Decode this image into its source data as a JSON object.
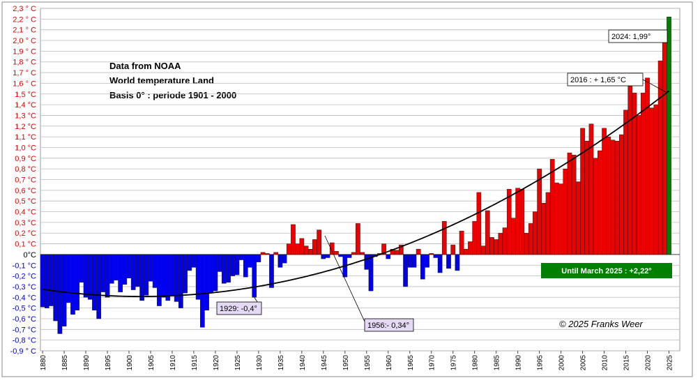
{
  "chart_data": {
    "type": "bar",
    "x": [
      1880,
      1881,
      1882,
      1883,
      1884,
      1885,
      1886,
      1887,
      1888,
      1889,
      1890,
      1891,
      1892,
      1893,
      1894,
      1895,
      1896,
      1897,
      1898,
      1899,
      1900,
      1901,
      1902,
      1903,
      1904,
      1905,
      1906,
      1907,
      1908,
      1909,
      1910,
      1911,
      1912,
      1913,
      1914,
      1915,
      1916,
      1917,
      1918,
      1919,
      1920,
      1921,
      1922,
      1923,
      1924,
      1925,
      1926,
      1927,
      1928,
      1929,
      1930,
      1931,
      1932,
      1933,
      1934,
      1935,
      1936,
      1937,
      1938,
      1939,
      1940,
      1941,
      1942,
      1943,
      1944,
      1945,
      1946,
      1947,
      1948,
      1949,
      1950,
      1951,
      1952,
      1953,
      1954,
      1955,
      1956,
      1957,
      1958,
      1959,
      1960,
      1961,
      1962,
      1963,
      1964,
      1965,
      1966,
      1967,
      1968,
      1969,
      1970,
      1971,
      1972,
      1973,
      1974,
      1975,
      1976,
      1977,
      1978,
      1979,
      1980,
      1981,
      1982,
      1983,
      1984,
      1985,
      1986,
      1987,
      1988,
      1989,
      1990,
      1991,
      1992,
      1993,
      1994,
      1995,
      1996,
      1997,
      1998,
      1999,
      2000,
      2001,
      2002,
      2003,
      2004,
      2005,
      2006,
      2007,
      2008,
      2009,
      2010,
      2011,
      2012,
      2013,
      2014,
      2015,
      2016,
      2017,
      2018,
      2019,
      2020,
      2021,
      2022,
      2023,
      2024,
      2025
    ],
    "values": [
      -0.49,
      -0.5,
      -0.48,
      -0.62,
      -0.74,
      -0.67,
      -0.45,
      -0.56,
      -0.52,
      -0.26,
      -0.4,
      -0.42,
      -0.52,
      -0.6,
      -0.35,
      -0.4,
      -0.27,
      -0.24,
      -0.35,
      -0.28,
      -0.22,
      -0.33,
      -0.3,
      -0.43,
      -0.38,
      -0.25,
      -0.31,
      -0.48,
      -0.4,
      -0.43,
      -0.38,
      -0.44,
      -0.5,
      -0.36,
      -0.15,
      -0.12,
      -0.42,
      -0.68,
      -0.52,
      -0.36,
      -0.34,
      -0.16,
      -0.27,
      -0.26,
      -0.2,
      -0.19,
      -0.05,
      -0.21,
      -0.12,
      -0.4,
      -0.07,
      0.02,
      0.01,
      -0.31,
      0.02,
      -0.12,
      -0.08,
      0.1,
      0.28,
      0.1,
      0.15,
      0.08,
      0.05,
      0.14,
      0.23,
      -0.04,
      -0.03,
      0.11,
      0.03,
      -0.02,
      -0.21,
      -0.03,
      0.02,
      0.29,
      0.02,
      -0.14,
      -0.34,
      -0.02,
      0.01,
      0.1,
      -0.04,
      0.05,
      0.04,
      0.09,
      -0.3,
      -0.12,
      -0.12,
      0.05,
      -0.23,
      -0.12,
      0.01,
      -0.03,
      -0.17,
      0.31,
      -0.13,
      0.09,
      -0.15,
      0.22,
      0.05,
      0.12,
      0.31,
      0.58,
      0.08,
      0.41,
      0.16,
      0.14,
      0.2,
      0.25,
      0.61,
      0.34,
      0.62,
      0.61,
      0.2,
      0.29,
      0.4,
      0.8,
      0.48,
      0.58,
      0.89,
      0.67,
      0.66,
      0.8,
      0.95,
      0.93,
      0.68,
      1.18,
      1.06,
      1.22,
      0.9,
      0.97,
      1.18,
      1.1,
      1.07,
      1.06,
      1.12,
      1.35,
      1.65,
      1.51,
      1.3,
      1.51,
      1.65,
      1.37,
      1.4,
      1.81,
      1.99,
      2.22
    ],
    "positive_color": "#ee0000",
    "negative_color": "#0000ee",
    "last_color": "#008000",
    "trendline": "polynomial",
    "xlim": [
      1879.5,
      2027.5
    ],
    "xticks": [
      1880,
      1885,
      1890,
      1895,
      1900,
      1905,
      1910,
      1915,
      1920,
      1925,
      1930,
      1935,
      1940,
      1945,
      1950,
      1955,
      1960,
      1965,
      1970,
      1975,
      1980,
      1985,
      1990,
      1995,
      2000,
      2005,
      2010,
      2015,
      2020,
      2025
    ],
    "ylim": [
      -0.9,
      2.3
    ],
    "yticks": [
      {
        "value": 2.3,
        "label": "2,3 ° C"
      },
      {
        "value": 2.2,
        "label": "2,2 ° C"
      },
      {
        "value": 2.1,
        "label": "2,1 ° C"
      },
      {
        "value": 2.0,
        "label": "2,0 ° C"
      },
      {
        "value": 1.9,
        "label": "1,9 ° C"
      },
      {
        "value": 1.8,
        "label": "1,8 ° C"
      },
      {
        "value": 1.7,
        "label": "1,7 ° C"
      },
      {
        "value": 1.6,
        "label": "1,6 ° C"
      },
      {
        "value": 1.5,
        "label": "1,5 °C"
      },
      {
        "value": 1.4,
        "label": "1,4 °C"
      },
      {
        "value": 1.3,
        "label": "1,3 °C"
      },
      {
        "value": 1.2,
        "label": "1,2 °C"
      },
      {
        "value": 1.1,
        "label": "1,1 °C"
      },
      {
        "value": 1.0,
        "label": "1,0 °C"
      },
      {
        "value": 0.9,
        "label": "0,9 °C"
      },
      {
        "value": 0.8,
        "label": "0,8 °C"
      },
      {
        "value": 0.7,
        "label": "0,7 °C"
      },
      {
        "value": 0.6,
        "label": "0,6 °C"
      },
      {
        "value": 0.5,
        "label": "0,5 °C"
      },
      {
        "value": 0.4,
        "label": "0,4 °C"
      },
      {
        "value": 0.3,
        "label": "0,3 °C"
      },
      {
        "value": 0.2,
        "label": "0,2 °C"
      },
      {
        "value": 0.1,
        "label": "0,1 °C"
      },
      {
        "value": 0,
        "label": "0°C"
      },
      {
        "value": -0.1,
        "label": "-0,1 °C"
      },
      {
        "value": -0.2,
        "label": "-0,2 °C"
      },
      {
        "value": -0.3,
        "label": "-0,3 °C"
      },
      {
        "value": -0.4,
        "label": "-0,4 °C"
      },
      {
        "value": -0.5,
        "label": "-0,5 °C"
      },
      {
        "value": -0.6,
        "label": "-0,6 °C"
      },
      {
        "value": -0.7,
        "label": "-0,7 °C"
      },
      {
        "value": -0.8,
        "label": "-0,8 °C"
      },
      {
        "value": -0.9,
        "label": "-0,9 ° C"
      }
    ],
    "grid": true,
    "notes": [
      "Data from NOAA",
      "World temperature Land",
      "Basis 0° : periode 1901 - 2000"
    ],
    "annotations": [
      {
        "text": "2024: 1,99°",
        "x": 2024
      },
      {
        "text": "2016 : + 1,65 °C",
        "x": 2016
      },
      {
        "text": "1929: -0,4°",
        "x": 1929
      },
      {
        "text": "1956:- 0,34°",
        "x": 1956
      }
    ],
    "banner": "Until March 2025 : +2,22°",
    "credit": "© 2025 Franks Weer"
  }
}
